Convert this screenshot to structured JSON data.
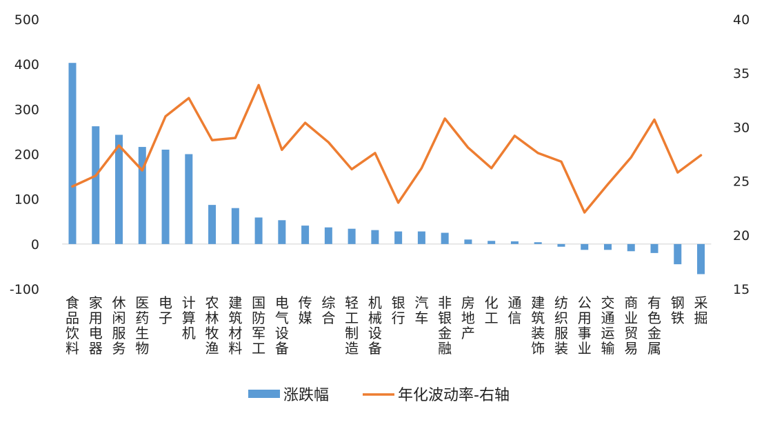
{
  "chart_data": {
    "type": "bar+line",
    "categories": [
      "食品饮料",
      "家用电器",
      "休闲服务",
      "医药生物",
      "电子",
      "计算机",
      "农林牧渔",
      "建筑材料",
      "国防军工",
      "电气设备",
      "传媒",
      "综合",
      "轻工制造",
      "机械设备",
      "银行",
      "汽车",
      "非银金融",
      "房地产",
      "化工",
      "通信",
      "建筑装饰",
      "纺织服装",
      "公用事业",
      "交通运输",
      "商业贸易",
      "有色金属",
      "钢铁",
      "采掘"
    ],
    "series": [
      {
        "name": "涨跌幅",
        "type": "bar",
        "axis": "left",
        "color": "#5B9BD5",
        "values": [
          403,
          262,
          243,
          216,
          210,
          200,
          87,
          80,
          59,
          53,
          41,
          37,
          34,
          31,
          28,
          28,
          25,
          10,
          7,
          6,
          4,
          -6,
          -13,
          -13,
          -16,
          -20,
          -45,
          -67
        ]
      },
      {
        "name": "年化波动率-右轴",
        "type": "line",
        "axis": "right",
        "color": "#ED7D31",
        "values": [
          24.5,
          25.5,
          28.3,
          26.0,
          31.0,
          32.7,
          28.8,
          29.0,
          33.9,
          27.9,
          30.4,
          28.6,
          26.1,
          27.6,
          23.0,
          26.2,
          30.8,
          28.1,
          26.2,
          29.2,
          27.6,
          26.8,
          22.1,
          24.7,
          27.2,
          30.7,
          25.8,
          27.4
        ]
      }
    ],
    "left_axis": {
      "min": -100,
      "max": 500,
      "ticks": [
        500,
        400,
        300,
        200,
        100,
        0,
        -100
      ],
      "negative_tick_color": "#FF0000"
    },
    "right_axis": {
      "min": 15,
      "max": 40,
      "ticks": [
        40,
        35,
        30,
        25,
        20,
        15
      ]
    },
    "legend": {
      "position": "bottom",
      "items": [
        "涨跌幅",
        "年化波动率-右轴"
      ]
    },
    "grid": false
  }
}
